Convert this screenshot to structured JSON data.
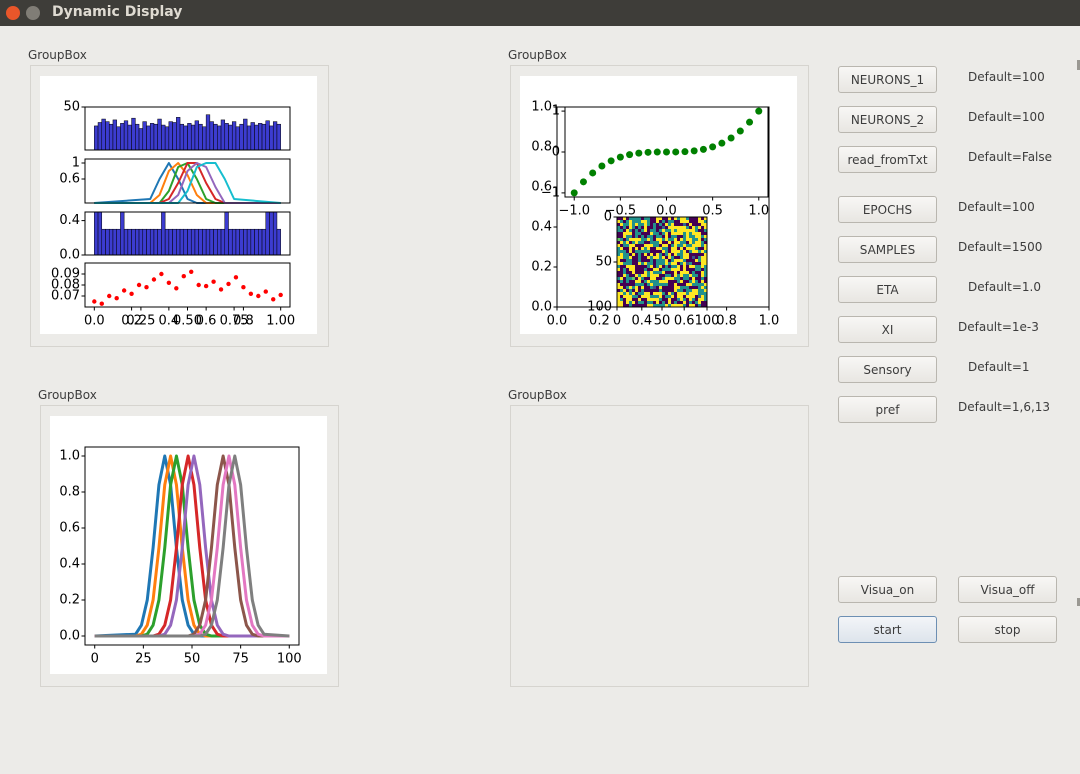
{
  "window": {
    "title": "Dynamic Display"
  },
  "groupboxes": [
    {
      "title": "GroupBox"
    },
    {
      "title": "GroupBox"
    },
    {
      "title": "GroupBox"
    },
    {
      "title": "GroupBox"
    }
  ],
  "controls": [
    {
      "button": "NEURONS_1",
      "default": "Default=100"
    },
    {
      "button": "NEURONS_2",
      "default": "Default=100"
    },
    {
      "button": "read_fromTxt",
      "default": "Default=False"
    },
    {
      "button": "EPOCHS",
      "default": "Default=100"
    },
    {
      "button": "SAMPLES",
      "default": "Default=1500"
    },
    {
      "button": "ETA",
      "default": "Default=1.0"
    },
    {
      "button": "XI",
      "default": "Default=1e-3"
    },
    {
      "button": "Sensory",
      "default": "Default=1"
    },
    {
      "button": "pref",
      "default": "Default=1,6,13"
    }
  ],
  "buttons": [
    "Visua_on",
    "Visua_off",
    "start",
    "stop"
  ],
  "figures": [
    {
      "panels": [
        {
          "type": "bar",
          "color": "#3c3cd0",
          "xlim": [
            -0.05,
            1.05
          ],
          "ylim": [
            0,
            50
          ],
          "yticks": [
            50
          ],
          "values": [
            28,
            32,
            36,
            33,
            30,
            35,
            27,
            31,
            34,
            29,
            37,
            30,
            25,
            33,
            28,
            31,
            30,
            36,
            29,
            27,
            33,
            32,
            38,
            30,
            28,
            31,
            29,
            34,
            30,
            27,
            41,
            33,
            30,
            28,
            35,
            31,
            29,
            33,
            27,
            30,
            36,
            28,
            32,
            29,
            31,
            30,
            34,
            28,
            33,
            30
          ]
        },
        {
          "type": "line",
          "xlim": [
            -0.05,
            1.05
          ],
          "ylim": [
            0,
            1.1
          ],
          "yticks": [
            {
              "value": 0.6,
              "label": "0.6"
            },
            1
          ],
          "x": [
            0,
            0.3,
            0.35,
            0.4,
            0.45,
            0.5,
            0.55,
            0.6,
            0.65,
            0.7,
            0.75,
            1
          ],
          "series": [
            {
              "color": "#1f77b4",
              "values": [
                0,
                0.1,
                0.6,
                1,
                0.6,
                0.1,
                0,
                0,
                0,
                0,
                0,
                0
              ]
            },
            {
              "color": "#ff7f0e",
              "values": [
                0,
                0,
                0.2,
                0.8,
                1,
                0.7,
                0.2,
                0,
                0,
                0,
                0,
                0
              ]
            },
            {
              "color": "#2ca02c",
              "values": [
                0,
                0,
                0,
                0.3,
                0.9,
                1,
                0.6,
                0.1,
                0,
                0,
                0,
                0
              ]
            },
            {
              "color": "#d62728",
              "values": [
                0,
                0,
                0,
                0.1,
                0.5,
                1,
                1,
                0.5,
                0.1,
                0,
                0,
                0
              ]
            },
            {
              "color": "#9467bd",
              "values": [
                0,
                0,
                0,
                0,
                0.2,
                0.8,
                1,
                0.9,
                0.4,
                0,
                0,
                0
              ]
            },
            {
              "color": "#17becf",
              "values": [
                0,
                0,
                0,
                0,
                0,
                0.3,
                0.9,
                1,
                1,
                0.6,
                0.1,
                0
              ]
            }
          ]
        },
        {
          "type": "bar",
          "color": "#3c3cd0",
          "xlim": [
            -0.05,
            1.05
          ],
          "ylim": [
            0,
            0.5
          ],
          "yticks": [
            {
              "value": 0,
              "label": "0.0"
            },
            {
              "value": 0.4,
              "label": "0.4"
            }
          ],
          "values": [
            0.5,
            0.5,
            0.3,
            0.3,
            0.3,
            0.3,
            0.3,
            0.5,
            0.3,
            0.3,
            0.3,
            0.3,
            0.3,
            0.3,
            0.3,
            0.3,
            0.3,
            0.3,
            0.5,
            0.3,
            0.3,
            0.3,
            0.3,
            0.3,
            0.3,
            0.3,
            0.3,
            0.3,
            0.3,
            0.3,
            0.3,
            0.3,
            0.3,
            0.3,
            0.3,
            0.5,
            0.3,
            0.3,
            0.3,
            0.3,
            0.3,
            0.3,
            0.3,
            0.3,
            0.3,
            0.3,
            0.5,
            0.5,
            0.5,
            0.3
          ]
        },
        {
          "type": "scatter",
          "color": "#ff0000",
          "xlim": [
            -0.05,
            1.05
          ],
          "ylim": [
            0.06,
            0.1
          ],
          "yticks": [
            {
              "value": 0.07,
              "label": "0.07"
            },
            {
              "value": 0.08,
              "label": "0.08"
            },
            {
              "value": 0.09,
              "label": "0.09"
            }
          ],
          "xticks": [
            {
              "value": 0,
              "label": "0.0"
            },
            {
              "value": 0.2,
              "label": "0.2"
            },
            {
              "value": 0.25,
              "label": "0.25"
            },
            {
              "value": 0.4,
              "label": "0.4"
            },
            {
              "value": 0.5,
              "label": "0.50"
            },
            {
              "value": 0.6,
              "label": "0.6"
            },
            {
              "value": 0.75,
              "label": "0.75"
            },
            {
              "value": 0.8,
              "label": "0.8"
            },
            {
              "value": 1,
              "label": "1.00"
            }
          ],
          "x": [
            0,
            0.04,
            0.08,
            0.12,
            0.16,
            0.2,
            0.24,
            0.28,
            0.32,
            0.36,
            0.4,
            0.44,
            0.48,
            0.52,
            0.56,
            0.6,
            0.64,
            0.68,
            0.72,
            0.76,
            0.8,
            0.84,
            0.88,
            0.92,
            0.96,
            1
          ],
          "values": [
            0.065,
            0.063,
            0.07,
            0.068,
            0.075,
            0.072,
            0.08,
            0.078,
            0.085,
            0.09,
            0.082,
            0.077,
            0.088,
            0.092,
            0.08,
            0.079,
            0.083,
            0.076,
            0.081,
            0.087,
            0.078,
            0.072,
            0.07,
            0.074,
            0.067,
            0.071
          ]
        }
      ]
    },
    {
      "panels": [
        {
          "type": "frame",
          "xlim": [
            0,
            1
          ],
          "ylim": [
            0,
            1
          ],
          "xticks": [
            {
              "value": 0,
              "label": "0.0"
            },
            {
              "value": 0.2,
              "label": "0.2"
            },
            {
              "value": 0.4,
              "label": "0.4"
            },
            {
              "value": 0.6,
              "label": "0.6"
            },
            {
              "value": 0.8,
              "label": "0.8"
            },
            {
              "value": 1,
              "label": "1.0"
            }
          ],
          "yticks": [
            {
              "value": 0,
              "label": "0.0"
            },
            {
              "value": 0.2,
              "label": "0.2"
            },
            {
              "value": 0.4,
              "label": "0.4"
            },
            {
              "value": 0.6,
              "label": "0.6"
            },
            {
              "value": 0.8,
              "label": "0.8"
            },
            {
              "value": 1,
              "label": "1.0"
            }
          ]
        },
        {
          "type": "scatter",
          "color": "#008000",
          "xlim": [
            -1.1,
            1.1
          ],
          "ylim": [
            -1.1,
            1.1
          ],
          "xticks": [
            {
              "value": -1,
              "label": "−1.0"
            },
            {
              "value": -0.5,
              "label": "−0.5"
            },
            {
              "value": 0,
              "label": "0.0"
            },
            {
              "value": 0.5,
              "label": "0.5"
            },
            {
              "value": 1,
              "label": "1.0"
            }
          ],
          "yticks": [
            {
              "value": -1,
              "label": "−1"
            },
            0,
            1
          ],
          "x": [
            -1,
            -0.9,
            -0.8,
            -0.7,
            -0.6,
            -0.5,
            -0.4,
            -0.3,
            -0.2,
            -0.1,
            0,
            0.1,
            0.2,
            0.3,
            0.4,
            0.5,
            0.6,
            0.7,
            0.8,
            0.9,
            1
          ],
          "values": [
            -1,
            -0.729,
            -0.512,
            -0.343,
            -0.216,
            -0.125,
            -0.064,
            -0.027,
            -0.008,
            -0.001,
            0,
            0.001,
            0.008,
            0.027,
            0.064,
            0.125,
            0.216,
            0.343,
            0.512,
            0.729,
            1
          ]
        },
        {
          "type": "image",
          "xlim": [
            0,
            100
          ],
          "ylim": [
            100,
            0
          ],
          "xticks": [
            0,
            50,
            100
          ],
          "yticks": [
            0,
            50,
            100
          ]
        }
      ]
    },
    {
      "panels": [
        {
          "type": "line",
          "xlim": [
            -5,
            105
          ],
          "ylim": [
            -0.05,
            1.05
          ],
          "linewidth": 3,
          "xticks": [
            0,
            25,
            50,
            75,
            100
          ],
          "yticks": [
            {
              "value": 0,
              "label": "0.0"
            },
            {
              "value": 0.2,
              "label": "0.2"
            },
            {
              "value": 0.4,
              "label": "0.4"
            },
            {
              "value": 0.6,
              "label": "0.6"
            },
            {
              "value": 0.8,
              "label": "0.8"
            },
            {
              "value": 1,
              "label": "1.0"
            }
          ],
          "x": [
            0,
            21,
            24,
            27,
            30,
            33,
            36,
            39,
            42,
            45,
            48,
            51,
            54,
            57,
            60,
            63,
            66,
            69,
            72,
            75,
            78,
            81,
            84,
            87,
            100
          ],
          "series": [
            {
              "color": "#1f77b4",
              "values": [
                0,
                0.01,
                0.06,
                0.2,
                0.49,
                0.84,
                1,
                0.84,
                0.49,
                0.2,
                0.06,
                0.01,
                0,
                0,
                0,
                0,
                0,
                0,
                0,
                0,
                0,
                0,
                0,
                0,
                0
              ]
            },
            {
              "color": "#ff7f0e",
              "values": [
                0,
                0,
                0.01,
                0.06,
                0.2,
                0.49,
                0.84,
                1,
                0.84,
                0.49,
                0.2,
                0.06,
                0.01,
                0,
                0,
                0,
                0,
                0,
                0,
                0,
                0,
                0,
                0,
                0,
                0
              ]
            },
            {
              "color": "#2ca02c",
              "values": [
                0,
                0,
                0,
                0.01,
                0.06,
                0.2,
                0.49,
                0.84,
                1,
                0.84,
                0.49,
                0.2,
                0.06,
                0.01,
                0,
                0,
                0,
                0,
                0,
                0,
                0,
                0,
                0,
                0,
                0
              ]
            },
            {
              "color": "#d62728",
              "values": [
                0,
                0,
                0,
                0,
                0,
                0.01,
                0.06,
                0.2,
                0.49,
                0.84,
                1,
                0.84,
                0.49,
                0.2,
                0.06,
                0.01,
                0,
                0,
                0,
                0,
                0,
                0,
                0,
                0,
                0
              ]
            },
            {
              "color": "#9467bd",
              "values": [
                0,
                0,
                0,
                0,
                0,
                0,
                0.01,
                0.06,
                0.2,
                0.49,
                0.84,
                1,
                0.84,
                0.49,
                0.2,
                0.06,
                0.01,
                0,
                0,
                0,
                0,
                0,
                0,
                0,
                0
              ]
            },
            {
              "color": "#8c564b",
              "values": [
                0,
                0,
                0,
                0,
                0,
                0,
                0,
                0,
                0,
                0,
                0,
                0.01,
                0.06,
                0.2,
                0.49,
                0.84,
                1,
                0.84,
                0.49,
                0.2,
                0.06,
                0.01,
                0,
                0,
                0
              ]
            },
            {
              "color": "#e377c2",
              "values": [
                0,
                0,
                0,
                0,
                0,
                0,
                0,
                0,
                0,
                0,
                0,
                0,
                0.01,
                0.06,
                0.2,
                0.49,
                0.84,
                1,
                0.84,
                0.49,
                0.2,
                0.06,
                0.01,
                0,
                0
              ]
            },
            {
              "color": "#7f7f7f",
              "values": [
                0,
                0,
                0,
                0,
                0,
                0,
                0,
                0,
                0,
                0,
                0,
                0,
                0,
                0.01,
                0.06,
                0.2,
                0.49,
                0.84,
                1,
                0.84,
                0.49,
                0.2,
                0.06,
                0.01,
                0
              ]
            }
          ]
        }
      ]
    }
  ]
}
